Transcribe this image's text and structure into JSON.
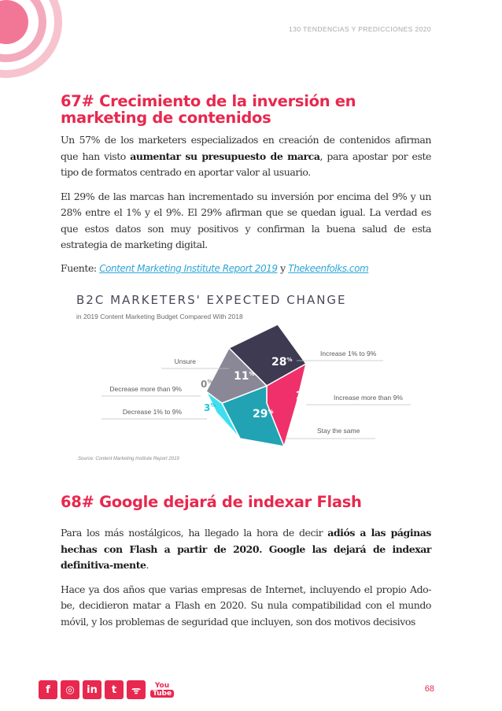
{
  "header": {
    "running_title": "130 TENDENCIAS Y PREDICCIONES 2020"
  },
  "section67": {
    "title": "67# Crecimiento de la inversión en marketing de contenidos",
    "p1_before": "Un 57% de los marketers especializados en creación de contenidos afirman que han visto ",
    "p1_bold": "aumentar su presupuesto de marca",
    "p1_after": ", para apostar por este tipo de formatos centrado en aportar valor al usuario.",
    "p2": "El 29% de las marcas han incrementado su inversión por encima del 9% y un 28% entre el 1% y el 9%. El 29% afirman que se quedan igual. La verdad es que estos datos son muy positivos y confirman la buena salud de esta estrategia de marketing digital.",
    "source_label": "Fuente: ",
    "source_link1": "Content Marketing Institute Report 2019",
    "source_and": " y ",
    "source_link2": "Thekeenfolks.com"
  },
  "chart_data": {
    "type": "pie",
    "title": "B2C MARKETERS' EXPECTED CHANGE",
    "subtitle": "in 2019 Content Marketing Budget Compared With 2018",
    "source": "Source: Content Marketing Institute Report 2019",
    "slices": [
      {
        "label": "Increase 1% to 9%",
        "value": 28,
        "value_text": "28",
        "color": "#3d3a52"
      },
      {
        "label": "Increase more than 9%",
        "value": 29,
        "value_text": "29",
        "color": "#f0306a"
      },
      {
        "label": "Stay the same",
        "value": 29,
        "value_text": "29",
        "color": "#21a3b4"
      },
      {
        "label": "Decrease 1% to 9%",
        "value": 3,
        "value_text": "3",
        "color": "#3ee0f0"
      },
      {
        "label": "Decrease more than 9%",
        "value": 0,
        "value_text": "0",
        "color": "#9a9a9a"
      },
      {
        "label": "Unsure",
        "value": 11,
        "value_text": "11",
        "color": "#8a8796"
      }
    ],
    "percent_sign": "%"
  },
  "section68": {
    "title": "68# Google dejará de indexar Flash",
    "p1_before": "Para los más nostálgicos, ha llegado la hora de decir ",
    "p1_bold": "adiós a las páginas hechas con Flash a partir de 2020. Google las dejará de indexar definitiva-mente",
    "p1_after": ".",
    "p2": "Hace ya dos años que varias empresas de Internet, incluyendo el propio Ado-be, decidieron matar a Flash en 2020. Su nula compatibilidad con el mundo móvil, y los problemas de seguridad que incluyen, son dos motivos decisivos"
  },
  "footer": {
    "social": [
      {
        "name": "facebook-icon",
        "glyph": "f"
      },
      {
        "name": "instagram-icon",
        "glyph": "◎"
      },
      {
        "name": "linkedin-icon",
        "glyph": "in"
      },
      {
        "name": "twitter-icon",
        "glyph": "t"
      },
      {
        "name": "rss-icon",
        "glyph": "ᯤ"
      }
    ],
    "youtube_top": "You",
    "youtube_bottom": "Tube",
    "page_number": "68"
  }
}
